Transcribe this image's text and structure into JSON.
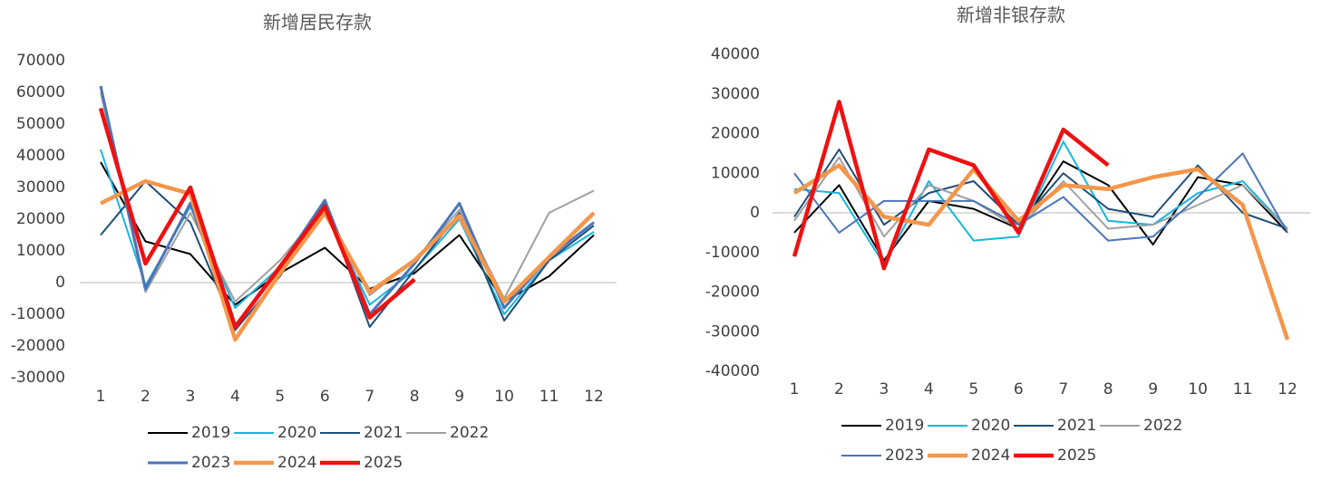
{
  "chart_data": [
    {
      "type": "line",
      "title": "新增居民存款",
      "categories": [
        "1",
        "2",
        "3",
        "4",
        "5",
        "6",
        "7",
        "8",
        "9",
        "10",
        "11",
        "12"
      ],
      "ylim": [
        -30000,
        70000
      ],
      "yticks": [
        -30000,
        -20000,
        -10000,
        0,
        10000,
        20000,
        30000,
        40000,
        50000,
        60000,
        70000
      ],
      "series": [
        {
          "name": "2019",
          "color": "#000000",
          "width": 2,
          "values": [
            38000,
            13000,
            9000,
            -7000,
            3000,
            11000,
            -2000,
            3000,
            15000,
            -6000,
            2000,
            15000
          ]
        },
        {
          "name": "2020",
          "color": "#16b6e0",
          "width": 2,
          "values": [
            42000,
            -1000,
            24000,
            -8000,
            5000,
            23000,
            -7000,
            4000,
            20000,
            -10000,
            7000,
            16000
          ]
        },
        {
          "name": "2021",
          "color": "#1f4e79",
          "width": 2,
          "values": [
            15000,
            32000,
            19000,
            -15000,
            2000,
            25000,
            -14000,
            4000,
            22000,
            -12000,
            7000,
            18000
          ]
        },
        {
          "name": "2022",
          "color": "#a0a0a0",
          "width": 2,
          "values": [
            60000,
            -3000,
            22000,
            -6000,
            7000,
            24000,
            -4000,
            7000,
            23000,
            -5000,
            22000,
            29000
          ]
        },
        {
          "name": "2023",
          "color": "#4a76b8",
          "width": 3,
          "values": [
            62000,
            -2000,
            25000,
            -14000,
            5000,
            26000,
            -10000,
            6000,
            25000,
            -8000,
            8000,
            19000
          ]
        },
        {
          "name": "2024",
          "color": "#f4964a",
          "width": 4.5,
          "values": [
            25000,
            32000,
            28000,
            -18000,
            3000,
            22000,
            -3000,
            7000,
            21000,
            -6000,
            8000,
            22000
          ]
        },
        {
          "name": "2025",
          "color": "#ee1111",
          "width": 4.5,
          "values": [
            55000,
            6000,
            30000,
            -14000,
            5000,
            24000,
            -11000,
            1000,
            null,
            null,
            null,
            null
          ]
        }
      ]
    },
    {
      "type": "line",
      "title": "新增非银存款",
      "categories": [
        "1",
        "2",
        "3",
        "4",
        "5",
        "6",
        "7",
        "8",
        "9",
        "10",
        "11",
        "12"
      ],
      "ylim": [
        -40000,
        40000
      ],
      "yticks": [
        -40000,
        -30000,
        -20000,
        -10000,
        0,
        10000,
        20000,
        30000,
        40000
      ],
      "series": [
        {
          "name": "2019",
          "color": "#000000",
          "width": 2,
          "values": [
            -5000,
            7000,
            -12000,
            3000,
            1000,
            -4000,
            13000,
            7000,
            -8000,
            9000,
            7000,
            -5000
          ]
        },
        {
          "name": "2020",
          "color": "#16b6e0",
          "width": 2,
          "values": [
            6000,
            5000,
            -13000,
            8000,
            -7000,
            -6000,
            18000,
            -2000,
            -3000,
            5000,
            8000,
            -4000
          ]
        },
        {
          "name": "2021",
          "color": "#1f4e79",
          "width": 2,
          "values": [
            -1000,
            16000,
            -3000,
            5000,
            8000,
            -3000,
            10000,
            1000,
            -1000,
            12000,
            0,
            -4000
          ]
        },
        {
          "name": "2022",
          "color": "#a0a0a0",
          "width": 2,
          "values": [
            -2000,
            14000,
            -6000,
            7000,
            3000,
            -4000,
            8000,
            -4000,
            -3000,
            2000,
            7000,
            -4000
          ]
        },
        {
          "name": "2023",
          "color": "#4a76b8",
          "width": 2,
          "values": [
            10000,
            -5000,
            3000,
            3000,
            3000,
            -3000,
            4000,
            -7000,
            -6000,
            4000,
            15000,
            -5000
          ]
        },
        {
          "name": "2024",
          "color": "#f4964a",
          "width": 4.5,
          "values": [
            5000,
            12000,
            -1000,
            -3000,
            11000,
            -2000,
            7000,
            6000,
            9000,
            11000,
            2000,
            -32000
          ]
        },
        {
          "name": "2025",
          "color": "#ee1111",
          "width": 4.5,
          "values": [
            -11000,
            28000,
            -14000,
            16000,
            12000,
            -5000,
            21000,
            12000,
            null,
            null,
            null,
            null
          ]
        }
      ]
    }
  ]
}
